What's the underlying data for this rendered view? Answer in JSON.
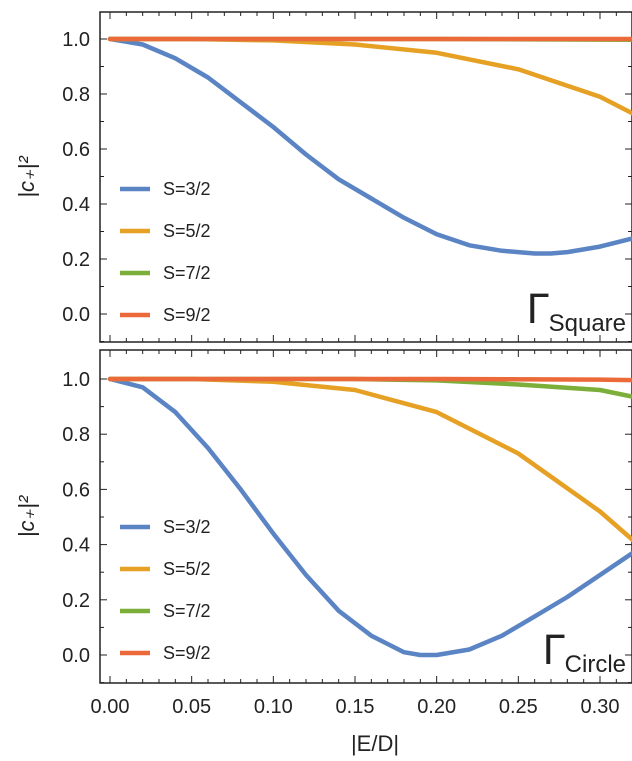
{
  "colors": {
    "S=3/2": "#5b84c4",
    "S=5/2": "#e6a024",
    "S=7/2": "#7cae3a",
    "S=9/2": "#ec6a3a"
  },
  "chart_data": [
    {
      "type": "line",
      "panel_label": {
        "main": "Γ",
        "sub": "Square"
      },
      "ylabel": "|c₊|²",
      "xlabel": "",
      "xlim": [
        0,
        0.333
      ],
      "ylim": [
        -0.1,
        1.1
      ],
      "yticks": [
        "0.0",
        "0.2",
        "0.4",
        "0.6",
        "0.8",
        "1.0"
      ],
      "legend_position": "bottom-left",
      "series": [
        {
          "name": "S=3/2",
          "x": [
            0,
            0.02,
            0.04,
            0.06,
            0.08,
            0.1,
            0.12,
            0.14,
            0.16,
            0.18,
            0.2,
            0.22,
            0.24,
            0.26,
            0.27,
            0.28,
            0.3,
            0.32,
            0.333
          ],
          "y": [
            1.0,
            0.98,
            0.93,
            0.86,
            0.77,
            0.68,
            0.58,
            0.49,
            0.42,
            0.35,
            0.29,
            0.25,
            0.23,
            0.22,
            0.22,
            0.225,
            0.245,
            0.275,
            0.3
          ]
        },
        {
          "name": "S=5/2",
          "x": [
            0,
            0.05,
            0.1,
            0.15,
            0.2,
            0.25,
            0.3,
            0.333
          ],
          "y": [
            1.0,
            1.0,
            0.995,
            0.98,
            0.95,
            0.89,
            0.79,
            0.69
          ]
        },
        {
          "name": "S=7/2",
          "x": [
            0,
            0.1,
            0.2,
            0.3,
            0.333
          ],
          "y": [
            1.0,
            1.0,
            1.0,
            0.998,
            0.997
          ]
        },
        {
          "name": "S=9/2",
          "x": [
            0,
            0.1,
            0.2,
            0.3,
            0.333
          ],
          "y": [
            1.0,
            1.0,
            1.0,
            1.0,
            1.0
          ]
        }
      ]
    },
    {
      "type": "line",
      "panel_label": {
        "main": "Γ",
        "sub": "Circle"
      },
      "ylabel": "|c₊|²",
      "xlabel": "|E/D|",
      "xlim": [
        0,
        0.333
      ],
      "ylim": [
        -0.1,
        1.1
      ],
      "yticks": [
        "0.0",
        "0.2",
        "0.4",
        "0.6",
        "0.8",
        "1.0"
      ],
      "xticks": [
        "0.00",
        "0.05",
        "0.10",
        "0.15",
        "0.20",
        "0.25",
        "0.30"
      ],
      "legend_position": "bottom-left",
      "series": [
        {
          "name": "S=3/2",
          "x": [
            0,
            0.02,
            0.04,
            0.06,
            0.08,
            0.1,
            0.12,
            0.14,
            0.16,
            0.18,
            0.19,
            0.2,
            0.22,
            0.24,
            0.26,
            0.28,
            0.3,
            0.32,
            0.333
          ],
          "y": [
            1.0,
            0.97,
            0.88,
            0.75,
            0.6,
            0.44,
            0.29,
            0.16,
            0.07,
            0.01,
            0.0,
            0.0,
            0.02,
            0.07,
            0.14,
            0.21,
            0.29,
            0.37,
            0.43
          ]
        },
        {
          "name": "S=5/2",
          "x": [
            0,
            0.05,
            0.1,
            0.15,
            0.2,
            0.25,
            0.3,
            0.333
          ],
          "y": [
            1.0,
            1.0,
            0.99,
            0.96,
            0.88,
            0.73,
            0.52,
            0.35
          ]
        },
        {
          "name": "S=7/2",
          "x": [
            0,
            0.1,
            0.15,
            0.2,
            0.25,
            0.3,
            0.333
          ],
          "y": [
            1.0,
            1.0,
            1.0,
            0.995,
            0.98,
            0.96,
            0.92
          ]
        },
        {
          "name": "S=9/2",
          "x": [
            0,
            0.1,
            0.2,
            0.3,
            0.333
          ],
          "y": [
            1.0,
            1.0,
            1.0,
            0.998,
            0.995
          ]
        }
      ]
    }
  ]
}
